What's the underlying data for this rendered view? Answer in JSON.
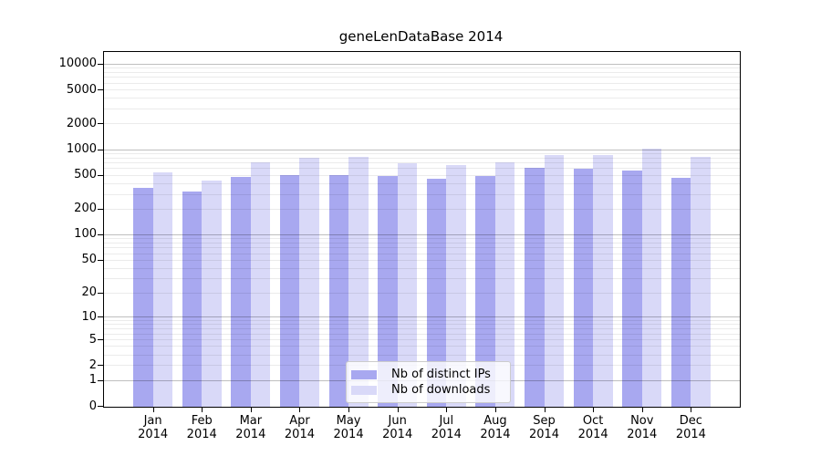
{
  "chart_data": {
    "type": "bar",
    "title": "geneLenDataBase 2014",
    "xlabel": "",
    "ylabel": "",
    "y_scale": "log10(1+y)",
    "ylim": [
      0,
      13500
    ],
    "grid": "major+minor horizontal",
    "legend_position": "lower center inside plot",
    "categories": [
      "Jan",
      "Feb",
      "Mar",
      "Apr",
      "May",
      "Jun",
      "Jul",
      "Aug",
      "Sep",
      "Oct",
      "Nov",
      "Dec"
    ],
    "category_year": "2014",
    "ytick_values": [
      0,
      1,
      2,
      5,
      10,
      20,
      50,
      100,
      200,
      500,
      1000,
      2000,
      5000,
      10000
    ],
    "series": [
      {
        "name": "Nb of distinct IPs",
        "color": "#a8a8f0",
        "values": [
          355,
          318,
          470,
          500,
          500,
          490,
          452,
          482,
          610,
          588,
          565,
          460
        ]
      },
      {
        "name": "Nb of downloads",
        "color": "#d9d9f8",
        "values": [
          532,
          426,
          697,
          794,
          812,
          681,
          652,
          708,
          846,
          858,
          1005,
          818
        ]
      }
    ]
  },
  "colors": {
    "grid_major": "rgba(0,0,0,0.25)",
    "grid_minor": "rgba(0,0,0,0.08)",
    "axis": "#000000",
    "background": "#ffffff"
  }
}
